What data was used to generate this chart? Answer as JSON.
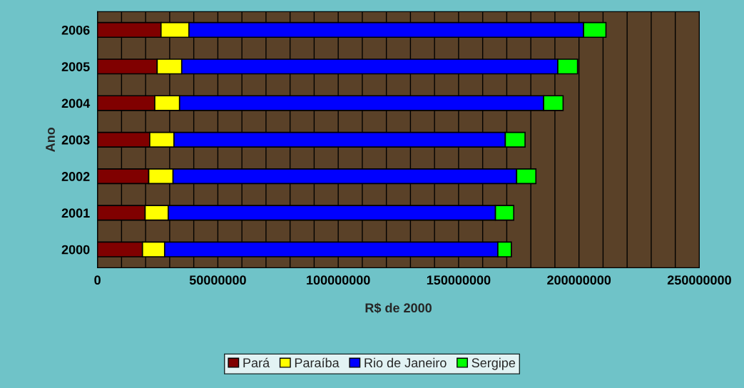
{
  "chart_data": {
    "type": "bar",
    "orientation": "horizontal",
    "stacked": true,
    "xlabel": "R$ de 2000",
    "ylabel": "Ano",
    "categories": [
      "2006",
      "2005",
      "2004",
      "2003",
      "2002",
      "2001",
      "2000"
    ],
    "series": [
      {
        "name": "Pará",
        "color": "#800000",
        "values": [
          26400000,
          24800000,
          23800000,
          21700000,
          21300000,
          19800000,
          18700000
        ]
      },
      {
        "name": "Paraíba",
        "color": "#ffff00",
        "values": [
          11600000,
          10200000,
          10300000,
          10100000,
          10100000,
          9600000,
          9200000
        ]
      },
      {
        "name": "Rio de Janeiro",
        "color": "#0000ff",
        "values": [
          163900000,
          156200000,
          151200000,
          137600000,
          142700000,
          135900000,
          138400000
        ]
      },
      {
        "name": "Sergipe",
        "color": "#00ff00",
        "values": [
          9300000,
          8200000,
          8100000,
          8200000,
          8000000,
          7600000,
          5600000
        ]
      }
    ],
    "xlim": [
      0,
      250000000
    ],
    "xticks": [
      0,
      {
        "value": 10000000,
        "label": null
      },
      {
        "value": 20000000,
        "label": null
      },
      {
        "value": 30000000,
        "label": null
      },
      {
        "value": 40000000,
        "label": null
      },
      50000000,
      {
        "value": 60000000,
        "label": null
      },
      {
        "value": 70000000,
        "label": null
      },
      {
        "value": 80000000,
        "label": null
      },
      {
        "value": 90000000,
        "label": null
      },
      100000000,
      {
        "value": 110000000,
        "label": null
      },
      {
        "value": 120000000,
        "label": null
      },
      {
        "value": 130000000,
        "label": null
      },
      {
        "value": 140000000,
        "label": null
      },
      150000000,
      {
        "value": 160000000,
        "label": null
      },
      {
        "value": 170000000,
        "label": null
      },
      {
        "value": 180000000,
        "label": null
      },
      {
        "value": 190000000,
        "label": null
      },
      200000000,
      {
        "value": 210000000,
        "label": null
      },
      {
        "value": 220000000,
        "label": null
      },
      {
        "value": 230000000,
        "label": null
      },
      {
        "value": 240000000,
        "label": null
      },
      250000000
    ],
    "grid": "x",
    "legend": "bottom"
  }
}
